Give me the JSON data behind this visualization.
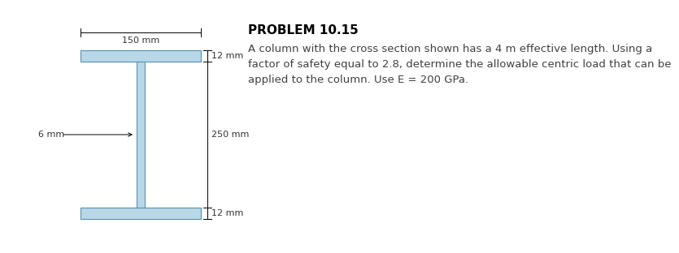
{
  "title": "PROBLEM 10.15",
  "problem_text": "A column with the cross section shown has a 4 m effective length. Using a\nfactor of safety equal to 2.8, determine the allowable centric load that can be\napplied to the column. Use E = 200 GPa.",
  "background_color": "#ffffff",
  "title_color": "#000000",
  "text_color": "#404040",
  "shape_fill": "#b8d8e8",
  "shape_edge": "#5590b0",
  "label_6mm": "6 mm",
  "label_250mm": "250 mm",
  "label_150mm": "150 mm",
  "label_12mm_top": "12 mm",
  "label_12mm_bot": "12 mm",
  "title_fontsize": 11,
  "text_fontsize": 9.5,
  "annot_fontsize": 8
}
